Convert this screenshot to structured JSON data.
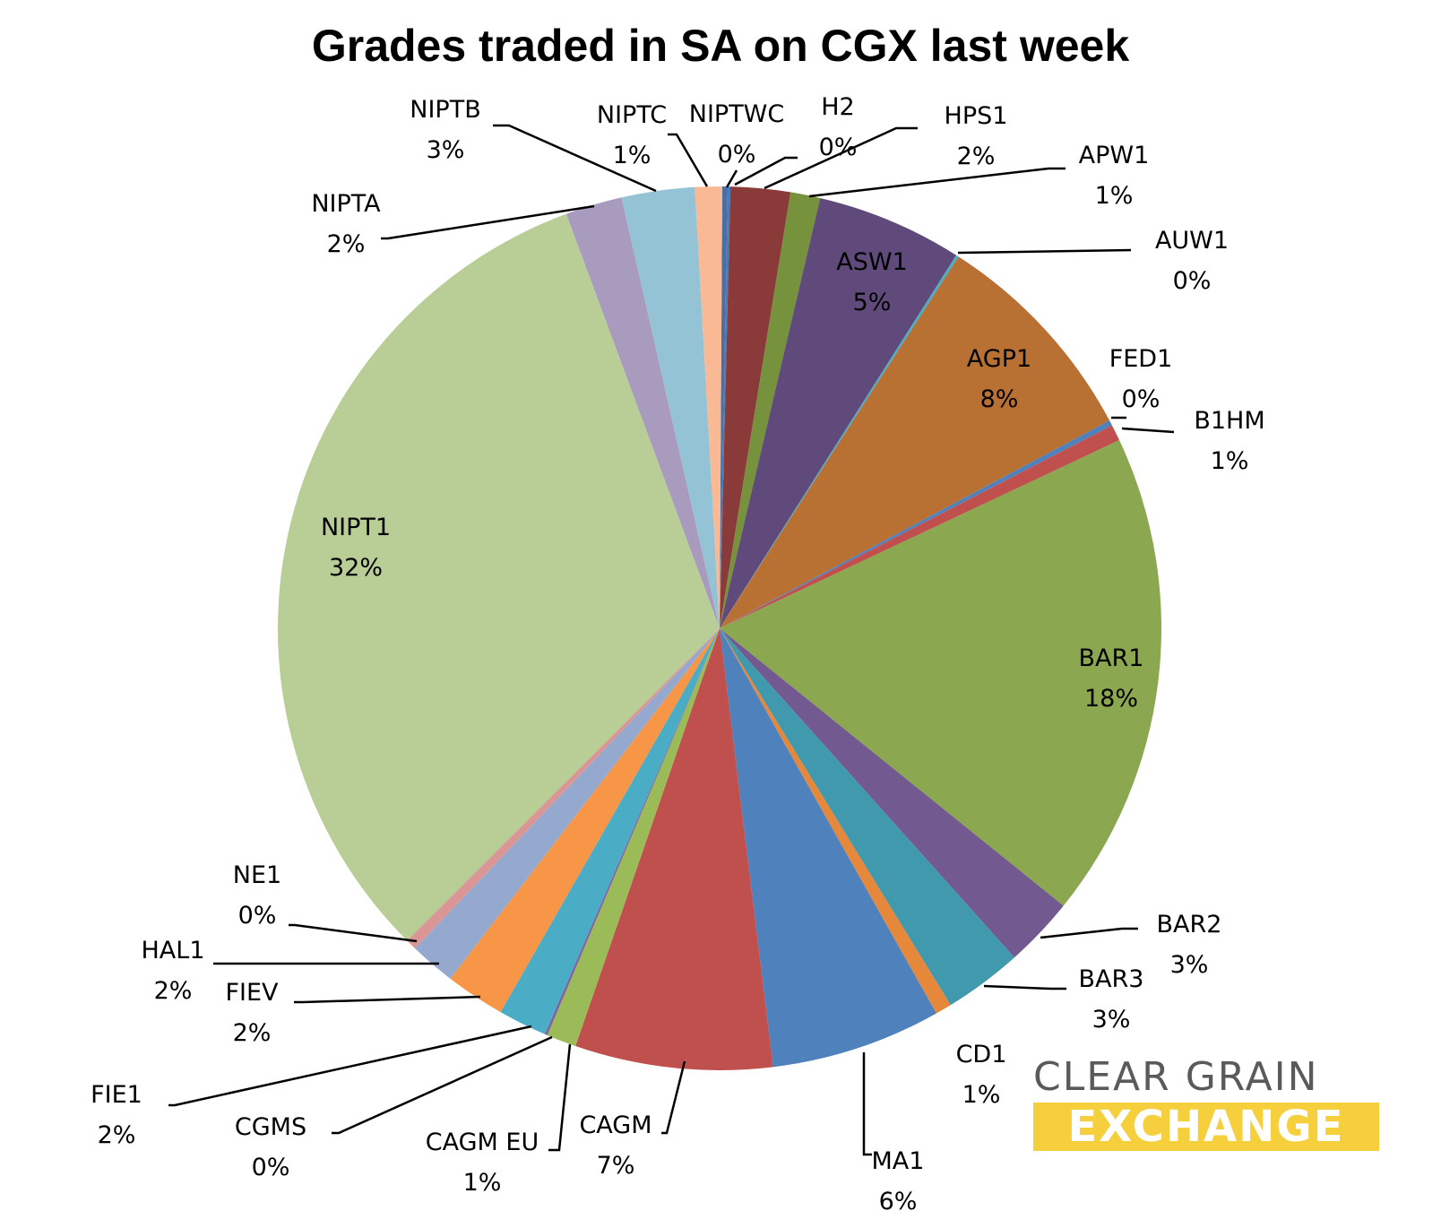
{
  "chart_data": {
    "type": "pie",
    "title": "Grades traded in SA on CGX last week",
    "slices": [
      {
        "name": "NIPTWC",
        "value": 0.2,
        "label": "0%",
        "color": "#4a6fa5"
      },
      {
        "name": "H2",
        "value": 0.1,
        "label": "0%",
        "color": "#4a7ab8"
      },
      {
        "name": "HPS1",
        "value": 2.2,
        "label": "2%",
        "color": "#8b3a3a"
      },
      {
        "name": "APW1",
        "value": 1.1,
        "label": "1%",
        "color": "#76923c"
      },
      {
        "name": "ASW1",
        "value": 5.4,
        "label": "5%",
        "color": "#604a7b"
      },
      {
        "name": "AUW1",
        "value": 0.1,
        "label": "0%",
        "color": "#4bacc6"
      },
      {
        "name": "AGP1",
        "value": 8.2,
        "label": "8%",
        "color": "#b97033"
      },
      {
        "name": "FED1",
        "value": 0.2,
        "label": "0%",
        "color": "#4f81bd"
      },
      {
        "name": "B1HM",
        "value": 0.6,
        "label": "1%",
        "color": "#c0504d"
      },
      {
        "name": "BAR1",
        "value": 18.0,
        "label": "18%",
        "color": "#8ba74f"
      },
      {
        "name": "BAR2",
        "value": 2.6,
        "label": "3%",
        "color": "#72598f"
      },
      {
        "name": "BAR3",
        "value": 2.9,
        "label": "3%",
        "color": "#4199ae"
      },
      {
        "name": "CD1",
        "value": 0.6,
        "label": "1%",
        "color": "#e5883b"
      },
      {
        "name": "MA1",
        "value": 6.3,
        "label": "6%",
        "color": "#4f81bd"
      },
      {
        "name": "CAGM",
        "value": 7.3,
        "label": "7%",
        "color": "#c0504d"
      },
      {
        "name": "CAGM EU",
        "value": 1.1,
        "label": "1%",
        "color": "#9bbb59"
      },
      {
        "name": "CGMS",
        "value": 0.1,
        "label": "0%",
        "color": "#8064a2"
      },
      {
        "name": "FIE1",
        "value": 1.8,
        "label": "2%",
        "color": "#4bacc6"
      },
      {
        "name": "FIEV",
        "value": 2.2,
        "label": "2%",
        "color": "#f79646"
      },
      {
        "name": "HAL1",
        "value": 1.7,
        "label": "2%",
        "color": "#95a9cf"
      },
      {
        "name": "NE1",
        "value": 0.4,
        "label": "0%",
        "color": "#d99694"
      },
      {
        "name": "NIPT1",
        "value": 32.2,
        "label": "32%",
        "color": "#b9ce96"
      },
      {
        "name": "NIPTA",
        "value": 2.1,
        "label": "2%",
        "color": "#a99bbd"
      },
      {
        "name": "NIPTB",
        "value": 2.7,
        "label": "3%",
        "color": "#93c3d5"
      },
      {
        "name": "NIPTC",
        "value": 1.0,
        "label": "1%",
        "color": "#f9b995"
      }
    ]
  },
  "logo": {
    "line1": "CLEAR GRAIN",
    "line2": "EXCHANGE"
  }
}
